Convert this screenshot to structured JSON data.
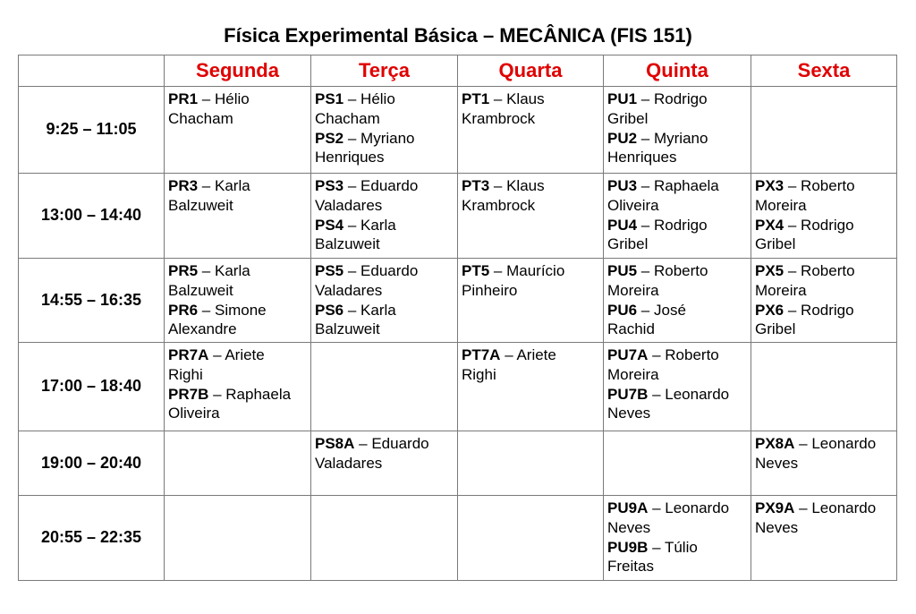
{
  "title": "Física Experimental Básica – MECÂNICA (FIS 151)",
  "days": [
    "Segunda",
    "Terça",
    "Quarta",
    "Quinta",
    "Sexta"
  ],
  "colors": {
    "day_header": "#e00000"
  },
  "rows": [
    {
      "time": "9:25 – 11:05",
      "cells": [
        [
          {
            "code": "PR1",
            "first": "Hélio",
            "last": "Chacham"
          }
        ],
        [
          {
            "code": "PS1",
            "first": "Hélio",
            "last": "Chacham"
          },
          {
            "code": "PS2",
            "first": "Myriano",
            "last": "Henriques"
          }
        ],
        [
          {
            "code": "PT1",
            "first": "Klaus",
            "last": "Krambrock"
          }
        ],
        [
          {
            "code": "PU1",
            "first": "Rodrigo",
            "last": "Gribel"
          },
          {
            "code": "PU2",
            "first": "Myriano",
            "last": "Henriques"
          }
        ],
        []
      ]
    },
    {
      "time": "13:00 – 14:40",
      "cells": [
        [
          {
            "code": "PR3",
            "first": "Karla",
            "last": "Balzuweit"
          }
        ],
        [
          {
            "code": "PS3",
            "first": "Eduardo",
            "last": "Valadares"
          },
          {
            "code": "PS4",
            "first": "Karla",
            "last": "Balzuweit"
          }
        ],
        [
          {
            "code": "PT3",
            "first": "Klaus",
            "last": "Krambrock"
          }
        ],
        [
          {
            "code": "PU3",
            "first": "Raphaela",
            "last": "Oliveira"
          },
          {
            "code": "PU4",
            "first": "Rodrigo",
            "last": "Gribel"
          }
        ],
        [
          {
            "code": "PX3",
            "first": "Roberto",
            "last": "Moreira"
          },
          {
            "code": "PX4",
            "first": "Rodrigo",
            "last": "Gribel"
          }
        ]
      ]
    },
    {
      "time": "14:55 – 16:35",
      "cells": [
        [
          {
            "code": "PR5",
            "first": "Karla",
            "last": "Balzuweit"
          },
          {
            "code": "PR6",
            "first": "Simone",
            "last": "Alexandre"
          }
        ],
        [
          {
            "code": "PS5",
            "first": "Eduardo",
            "last": "Valadares"
          },
          {
            "code": "PS6",
            "first": "Karla",
            "last": "Balzuweit"
          }
        ],
        [
          {
            "code": "PT5",
            "first": "Maurício",
            "last": "Pinheiro"
          }
        ],
        [
          {
            "code": "PU5",
            "first": "Roberto",
            "last": "Moreira"
          },
          {
            "code": "PU6",
            "first": "José",
            "last": "Rachid"
          }
        ],
        [
          {
            "code": "PX5",
            "first": "Roberto",
            "last": "Moreira"
          },
          {
            "code": "PX6",
            "first": "Rodrigo",
            "last": "Gribel"
          }
        ]
      ]
    },
    {
      "time": "17:00 – 18:40",
      "cells": [
        [
          {
            "code": "PR7A",
            "first": "Ariete",
            "last": "Righi"
          },
          {
            "code": "PR7B",
            "first": "Raphaela",
            "last": "Oliveira"
          }
        ],
        [],
        [
          {
            "code": "PT7A",
            "first": "Ariete",
            "last": "Righi"
          }
        ],
        [
          {
            "code": "PU7A",
            "first": "Roberto",
            "last": "Moreira"
          },
          {
            "code": "PU7B",
            "first": "Leonardo",
            "last": "Neves"
          }
        ],
        []
      ]
    },
    {
      "time": "19:00 – 20:40",
      "cells": [
        [],
        [
          {
            "code": "PS8A",
            "first": "Eduardo",
            "last": "Valadares"
          }
        ],
        [],
        [],
        [
          {
            "code": "PX8A",
            "first": "Leonardo",
            "last": "Neves"
          }
        ]
      ]
    },
    {
      "time": "20:55 – 22:35",
      "cells": [
        [],
        [],
        [],
        [
          {
            "code": "PU9A",
            "first": "Leonardo",
            "last": "Neves"
          },
          {
            "code": "PU9B",
            "first": "Túlio",
            "last": "Freitas"
          }
        ],
        [
          {
            "code": "PX9A",
            "first": "Leonardo",
            "last": "Neves"
          }
        ]
      ]
    }
  ]
}
